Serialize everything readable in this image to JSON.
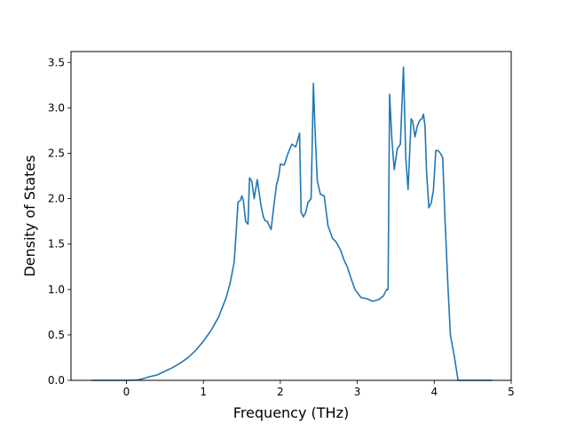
{
  "chart_data": {
    "type": "line",
    "title": "",
    "xlabel": "Frequency (THz)",
    "ylabel": "Density of States",
    "xlim": [
      -0.72,
      5.0
    ],
    "ylim": [
      0,
      3.62
    ],
    "xticks": [
      0,
      1,
      2,
      3,
      4,
      5
    ],
    "xtick_labels": [
      "0",
      "1",
      "2",
      "3",
      "4",
      "5"
    ],
    "yticks": [
      0.0,
      0.5,
      1.0,
      1.5,
      2.0,
      2.5,
      3.0,
      3.5
    ],
    "ytick_labels": [
      "0.0",
      "0.5",
      "1.0",
      "1.5",
      "2.0",
      "2.5",
      "3.0",
      "3.5"
    ],
    "grid": false,
    "legend": "none",
    "series": [
      {
        "color": "#1f77b4",
        "x": [
          -0.45,
          -0.2,
          0.0,
          0.15,
          0.2,
          0.3,
          0.4,
          0.5,
          0.6,
          0.7,
          0.8,
          0.9,
          1.0,
          1.1,
          1.2,
          1.3,
          1.35,
          1.4,
          1.42,
          1.45,
          1.48,
          1.5,
          1.52,
          1.55,
          1.58,
          1.6,
          1.63,
          1.66,
          1.7,
          1.75,
          1.78,
          1.8,
          1.83,
          1.88,
          1.92,
          1.95,
          1.98,
          2.0,
          2.05,
          2.1,
          2.15,
          2.2,
          2.25,
          2.27,
          2.3,
          2.33,
          2.36,
          2.4,
          2.43,
          2.45,
          2.48,
          2.52,
          2.57,
          2.62,
          2.68,
          2.72,
          2.78,
          2.83,
          2.87,
          2.92,
          2.97,
          3.05,
          3.12,
          3.2,
          3.28,
          3.34,
          3.38,
          3.4,
          3.42,
          3.45,
          3.48,
          3.52,
          3.56,
          3.6,
          3.63,
          3.66,
          3.7,
          3.72,
          3.75,
          3.78,
          3.81,
          3.84,
          3.86,
          3.88,
          3.9,
          3.93,
          3.96,
          3.99,
          4.02,
          4.05,
          4.08,
          4.11,
          4.14,
          4.18,
          4.21,
          4.26,
          4.31,
          4.35,
          4.5,
          4.75
        ],
        "y": [
          0.0,
          0.0,
          0.0,
          0.005,
          0.015,
          0.04,
          0.06,
          0.1,
          0.14,
          0.19,
          0.25,
          0.33,
          0.43,
          0.55,
          0.7,
          0.92,
          1.08,
          1.3,
          1.55,
          1.96,
          1.98,
          2.03,
          1.98,
          1.75,
          1.72,
          2.23,
          2.19,
          2.0,
          2.21,
          1.92,
          1.8,
          1.76,
          1.75,
          1.66,
          1.95,
          2.15,
          2.25,
          2.38,
          2.37,
          2.5,
          2.6,
          2.57,
          2.72,
          1.85,
          1.8,
          1.85,
          1.96,
          2.0,
          3.27,
          2.78,
          2.2,
          2.05,
          2.03,
          1.7,
          1.56,
          1.53,
          1.44,
          1.32,
          1.25,
          1.12,
          1.0,
          0.91,
          0.9,
          0.87,
          0.89,
          0.93,
          1.0,
          1.0,
          3.15,
          2.65,
          2.32,
          2.55,
          2.6,
          3.45,
          2.45,
          2.1,
          2.88,
          2.85,
          2.68,
          2.8,
          2.86,
          2.88,
          2.93,
          2.8,
          2.3,
          1.9,
          1.95,
          2.1,
          2.53,
          2.53,
          2.5,
          2.45,
          1.77,
          1.0,
          0.5,
          0.27,
          0.0,
          0.0,
          0.0,
          0.0
        ]
      }
    ]
  }
}
